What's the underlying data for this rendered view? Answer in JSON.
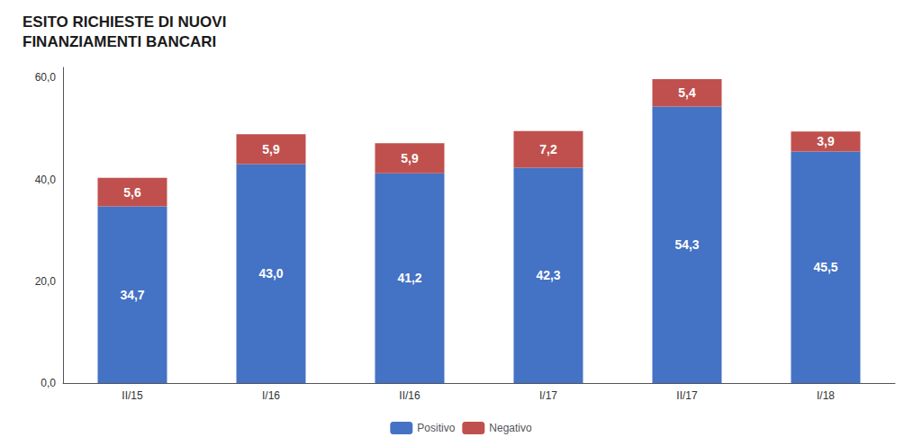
{
  "chart_data": {
    "type": "bar",
    "title": "ESITO RICHIESTE DI NUOVI\nFINANZIAMENTI BANCARI",
    "categories": [
      "II/15",
      "I/16",
      "II/16",
      "I/17",
      "II/17",
      "I/18"
    ],
    "series": [
      {
        "name": "Positivo",
        "color": "#4472C4",
        "values": [
          34.7,
          43.0,
          41.2,
          42.3,
          54.3,
          45.5
        ],
        "value_labels": [
          "34,7",
          "43,0",
          "41,2",
          "42,3",
          "54,3",
          "45,5"
        ]
      },
      {
        "name": "Negativo",
        "color": "#C0504D",
        "values": [
          5.6,
          5.9,
          5.9,
          7.2,
          5.4,
          3.9
        ],
        "value_labels": [
          "5,6",
          "5,9",
          "5,9",
          "7,2",
          "5,4",
          "3,9"
        ]
      }
    ],
    "stacked": true,
    "data_labels": true,
    "ylim": [
      0,
      62
    ],
    "yticks": [
      {
        "value": 0.0,
        "label": "0,0"
      },
      {
        "value": 20.0,
        "label": "20,0"
      },
      {
        "value": 40.0,
        "label": "40,0"
      },
      {
        "value": 60.0,
        "label": "60,0"
      }
    ],
    "grid": false,
    "legend": "bottom"
  }
}
